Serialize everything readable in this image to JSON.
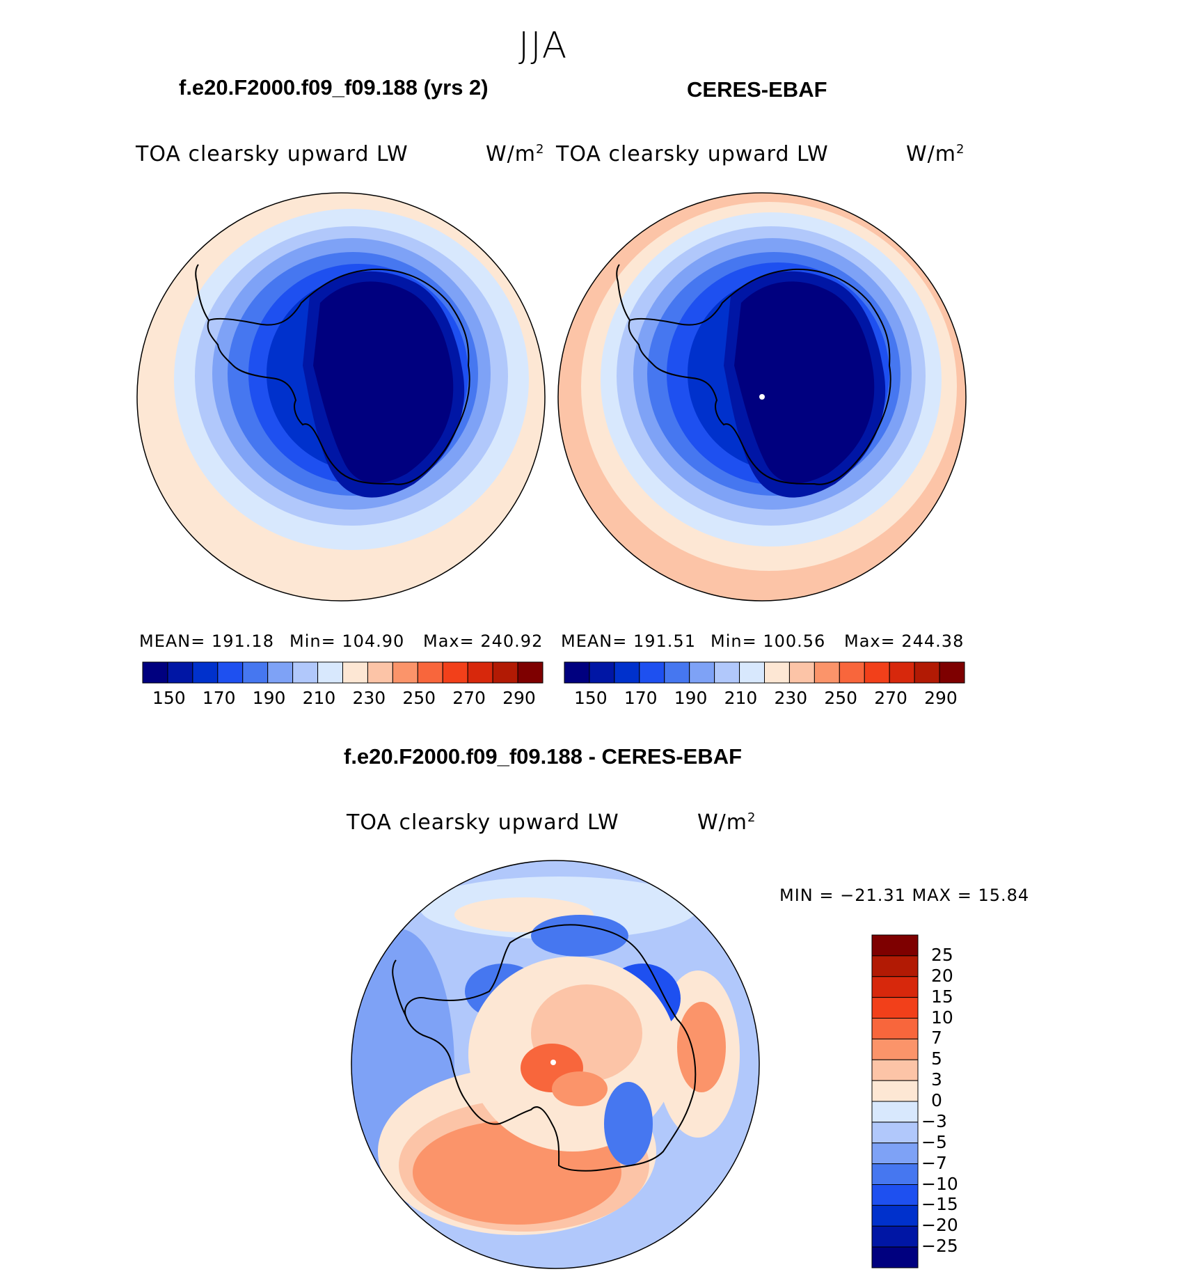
{
  "season": "JJA",
  "panels": [
    {
      "case_title": "f.e20.F2000.f09_f09.188 (yrs 2)",
      "variable": "TOA clearsky upward LW",
      "units_base": "W/m",
      "units_exp": "2",
      "stats": {
        "mean": "MEAN= 191.18",
        "min": "Min= 104.90",
        "max": "Max= 240.92"
      }
    },
    {
      "case_title": "CERES-EBAF",
      "variable": "TOA clearsky upward LW",
      "units_base": "W/m",
      "units_exp": "2",
      "stats": {
        "mean": "MEAN= 191.51",
        "min": "Min= 100.56",
        "max": "Max= 244.38"
      }
    }
  ],
  "diff_panel": {
    "title": "f.e20.F2000.f09_f09.188 - CERES-EBAF",
    "variable": "TOA clearsky upward LW",
    "units_base": "W/m",
    "units_exp": "2",
    "minmax": "MIN = −21.31 MAX =   15.84"
  },
  "colors": {
    "abs_scale": [
      "#00007f",
      "#0016a5",
      "#0031cc",
      "#1e50f0",
      "#4677f0",
      "#7ea2f6",
      "#b1c8fb",
      "#d8e8fd",
      "#fde7d4",
      "#fcc4a7",
      "#fb946a",
      "#f8663c",
      "#f2401a",
      "#d7280c",
      "#b21a04",
      "#7e0000"
    ],
    "diff_scale": [
      "#00007f",
      "#0016a5",
      "#0031cc",
      "#1e50f0",
      "#4677f0",
      "#7ea2f6",
      "#b1c8fb",
      "#d8e8fd",
      "#fde7d4",
      "#fcc4a7",
      "#fb946a",
      "#f8663c",
      "#f2401a",
      "#d7280c",
      "#b21a04",
      "#7e0000"
    ]
  },
  "chart_data": [
    {
      "type": "heatmap",
      "projection": "south polar stereographic",
      "variable": "TOA clearsky upward LW",
      "colorbar_levels": [
        150,
        160,
        170,
        180,
        190,
        200,
        210,
        220,
        230,
        240,
        250,
        260,
        270,
        280,
        290
      ],
      "colorbar_labels": [
        "150",
        "170",
        "190",
        "210",
        "230",
        "250",
        "270",
        "290"
      ],
      "mean": 191.18,
      "min": 104.9,
      "max": 240.92
    },
    {
      "type": "heatmap",
      "projection": "south polar stereographic",
      "variable": "TOA clearsky upward LW",
      "colorbar_levels": [
        150,
        160,
        170,
        180,
        190,
        200,
        210,
        220,
        230,
        240,
        250,
        260,
        270,
        280,
        290
      ],
      "colorbar_labels": [
        "150",
        "170",
        "190",
        "210",
        "230",
        "250",
        "270",
        "290"
      ],
      "mean": 191.51,
      "min": 100.56,
      "max": 244.38
    },
    {
      "type": "heatmap",
      "projection": "south polar stereographic",
      "variable": "TOA clearsky upward LW",
      "colorbar_levels": [
        -25,
        -20,
        -15,
        -10,
        -7,
        -5,
        -3,
        0,
        3,
        5,
        7,
        10,
        15,
        20,
        25
      ],
      "colorbar_labels": [
        "25",
        "20",
        "15",
        "10",
        "7",
        "5",
        "3",
        "0",
        "−3",
        "−5",
        "−7",
        "−10",
        "−15",
        "−20",
        "−25"
      ],
      "min": -21.31,
      "max": 15.84
    }
  ]
}
